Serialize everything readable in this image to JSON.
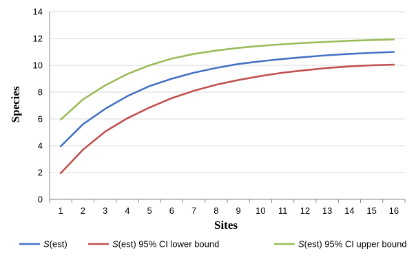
{
  "chart_data": {
    "type": "line",
    "xlabel": "Sites",
    "ylabel": "Species",
    "x": [
      1,
      2,
      3,
      4,
      5,
      6,
      7,
      8,
      9,
      10,
      11,
      12,
      13,
      14,
      15,
      16
    ],
    "ylim": [
      0,
      14
    ],
    "yticks": [
      0,
      2,
      4,
      6,
      8,
      10,
      12,
      14
    ],
    "grid": "horizontal",
    "legend_position": "bottom",
    "series": [
      {
        "name": "S(est)",
        "name_italic": "S",
        "name_rest": "(est)",
        "color": "#4472c4",
        "values": [
          3.95,
          5.6,
          6.75,
          7.7,
          8.45,
          9.0,
          9.45,
          9.8,
          10.1,
          10.3,
          10.47,
          10.62,
          10.75,
          10.85,
          10.93,
          11.0
        ]
      },
      {
        "name": "S(est) 95% CI lower bound",
        "name_italic": "S",
        "name_rest": "(est) 95% CI lower bound",
        "color": "#c0504d",
        "values": [
          1.95,
          3.7,
          5.05,
          6.05,
          6.85,
          7.55,
          8.1,
          8.55,
          8.9,
          9.2,
          9.45,
          9.63,
          9.8,
          9.92,
          10.0,
          10.05
        ]
      },
      {
        "name": "S(est) 95% CI upper bound",
        "name_italic": "S",
        "name_rest": "(est) 95% CI upper bound",
        "color": "#9bbb59",
        "values": [
          5.95,
          7.45,
          8.5,
          9.35,
          10.0,
          10.5,
          10.85,
          11.1,
          11.3,
          11.45,
          11.57,
          11.67,
          11.75,
          11.83,
          11.88,
          11.93
        ]
      }
    ]
  }
}
